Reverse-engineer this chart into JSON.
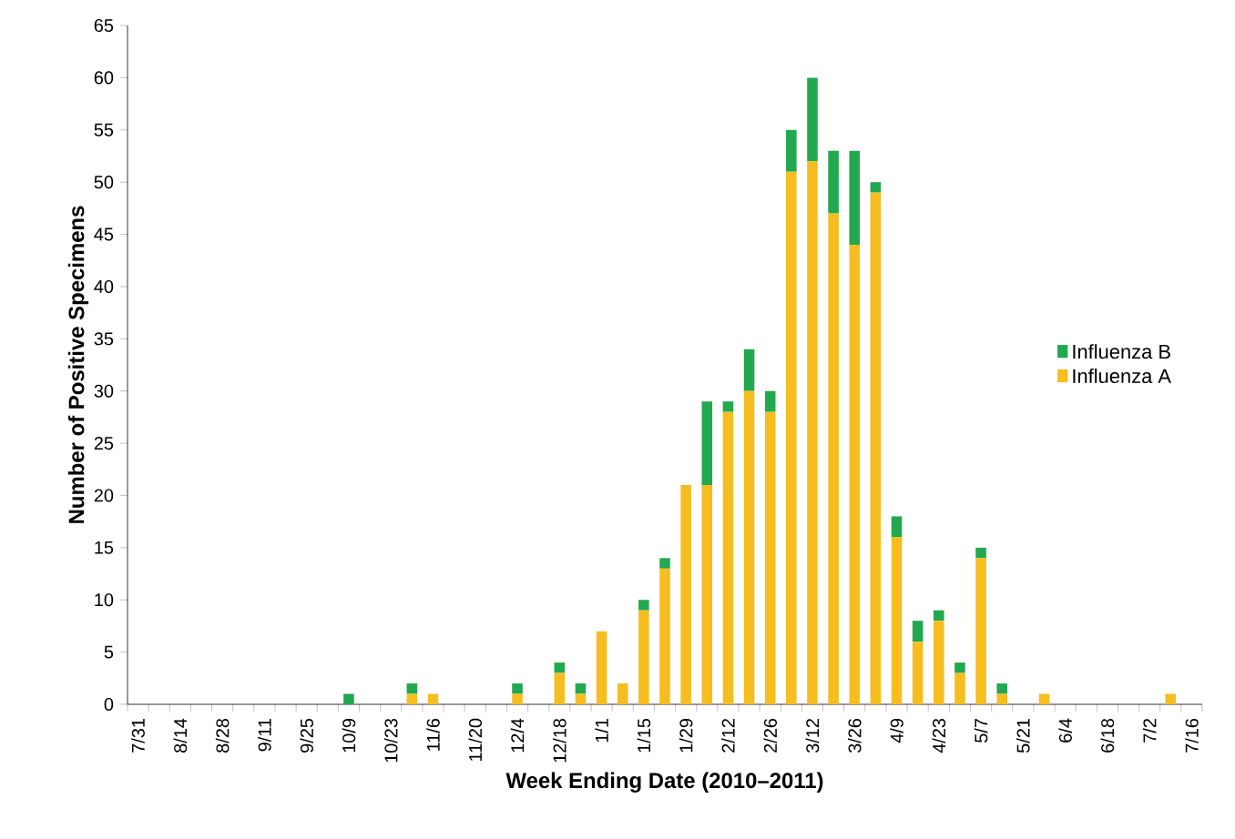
{
  "chart_data": {
    "type": "bar",
    "stacked": true,
    "xlabel": "Week Ending Date (2010–2011)",
    "ylabel": "Number of Positive Specimens",
    "categories": [
      "7/31",
      null,
      "8/14",
      null,
      "8/28",
      null,
      "9/11",
      null,
      "9/25",
      null,
      "10/9",
      null,
      "10/23",
      null,
      "11/6",
      null,
      "11/20",
      null,
      "12/4",
      null,
      "12/18",
      null,
      "1/1",
      null,
      "1/15",
      null,
      "1/29",
      null,
      "2/12",
      null,
      "2/26",
      null,
      "3/12",
      null,
      "3/26",
      null,
      "4/9",
      null,
      "4/23",
      null,
      "5/7",
      null,
      "5/21",
      null,
      "6/4",
      null,
      "6/18",
      null,
      "7/2",
      null,
      "7/16"
    ],
    "series": [
      {
        "name": "Influenza A",
        "color": "#f6bd20",
        "values": [
          0,
          0,
          0,
          0,
          0,
          0,
          0,
          0,
          0,
          0,
          0,
          0,
          0,
          1,
          1,
          0,
          0,
          0,
          1,
          0,
          3,
          1,
          7,
          2,
          9,
          13,
          21,
          21,
          28,
          30,
          28,
          51,
          52,
          47,
          44,
          49,
          16,
          6,
          8,
          3,
          14,
          1,
          0,
          1,
          0,
          0,
          0,
          0,
          0,
          1,
          0
        ]
      },
      {
        "name": "Influenza B",
        "color": "#22a84f",
        "values": [
          0,
          0,
          0,
          0,
          0,
          0,
          0,
          0,
          0,
          0,
          1,
          0,
          0,
          1,
          0,
          0,
          0,
          0,
          1,
          0,
          1,
          1,
          0,
          0,
          1,
          1,
          0,
          8,
          1,
          4,
          2,
          4,
          8,
          6,
          9,
          1,
          2,
          2,
          1,
          1,
          1,
          1,
          0,
          0,
          0,
          0,
          0,
          0,
          0,
          0,
          0
        ]
      }
    ],
    "ylim": [
      0,
      65
    ],
    "yticks": [
      0,
      5,
      10,
      15,
      20,
      25,
      30,
      35,
      40,
      45,
      50,
      55,
      60,
      65
    ],
    "grid": false,
    "legend": "right"
  }
}
